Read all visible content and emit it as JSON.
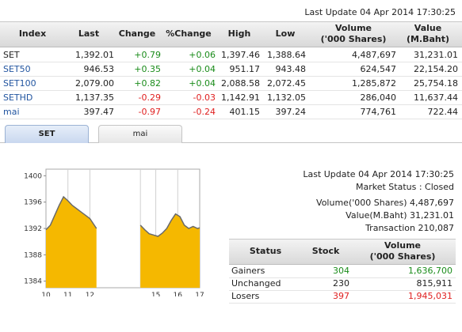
{
  "top": {
    "last_update": "Last Update 04 Apr 2014 17:30:25"
  },
  "index_table": {
    "headers": [
      "Index",
      "Last",
      "Change",
      "%Change",
      "High",
      "Low",
      "Volume\n('000 Shares)",
      "Value\n(M.Baht)"
    ],
    "rows": [
      {
        "index": "SET",
        "last": "1,392.01",
        "change": "+0.79",
        "pct": "+0.06",
        "high": "1,397.46",
        "low": "1,388.64",
        "volume": "4,487,697",
        "value": "31,231.01",
        "dir": "pos"
      },
      {
        "index": "SET50",
        "last": "946.53",
        "change": "+0.35",
        "pct": "+0.04",
        "high": "951.17",
        "low": "943.48",
        "volume": "624,547",
        "value": "22,154.20",
        "dir": "pos"
      },
      {
        "index": "SET100",
        "last": "2,079.00",
        "change": "+0.82",
        "pct": "+0.04",
        "high": "2,088.58",
        "low": "2,072.45",
        "volume": "1,285,872",
        "value": "25,754.18",
        "dir": "pos"
      },
      {
        "index": "SETHD",
        "last": "1,137.35",
        "change": "-0.29",
        "pct": "-0.03",
        "high": "1,142.91",
        "low": "1,132.05",
        "volume": "286,040",
        "value": "11,637.44",
        "dir": "neg"
      },
      {
        "index": "mai",
        "last": "397.47",
        "change": "-0.97",
        "pct": "-0.24",
        "high": "401.15",
        "low": "397.24",
        "volume": "774,761",
        "value": "722.44",
        "dir": "neg"
      }
    ]
  },
  "tabs": [
    {
      "label": "SET",
      "active": true
    },
    {
      "label": "mai",
      "active": false
    }
  ],
  "chart_data": {
    "type": "area",
    "x_tick_labels": [
      "10",
      "11",
      "12",
      "15",
      "16",
      "17"
    ],
    "y_tick_labels": [
      "1400",
      "1396",
      "1392",
      "1388",
      "1384"
    ],
    "ylim": [
      1383,
      1401
    ],
    "sessions": [
      {
        "t": [
          10.0,
          10.2,
          10.4,
          10.6,
          10.8,
          11.0,
          11.2,
          11.4,
          11.6,
          11.8,
          12.0,
          12.3
        ],
        "v": [
          1391.8,
          1392.5,
          1394.0,
          1395.5,
          1396.8,
          1396.2,
          1395.5,
          1395.0,
          1394.5,
          1394.0,
          1393.5,
          1392.0
        ]
      },
      {
        "t": [
          14.3,
          14.5,
          14.7,
          14.9,
          15.1,
          15.3,
          15.5,
          15.7,
          15.9,
          16.1,
          16.3,
          16.5,
          16.7,
          16.9,
          17.0
        ],
        "v": [
          1392.5,
          1391.8,
          1391.2,
          1391.0,
          1390.8,
          1391.3,
          1392.0,
          1393.2,
          1394.2,
          1393.8,
          1392.5,
          1392.0,
          1392.3,
          1392.0,
          1392.1
        ]
      }
    ]
  },
  "market_info": {
    "last_update": "Last Update 04 Apr 2014 17:30:25",
    "status": "Market Status : Closed",
    "volume": "Volume('000 Shares) 4,487,697",
    "value": "Value(M.Baht) 31,231.01",
    "transaction": "Transaction 210,087"
  },
  "status_table": {
    "headers": [
      "Status",
      "Stock",
      "Volume\n('000 Shares)"
    ],
    "rows": [
      {
        "status": "Gainers",
        "stock": "304",
        "volume": "1,636,700",
        "dir": "pos"
      },
      {
        "status": "Unchanged",
        "stock": "230",
        "volume": "815,911",
        "dir": "neutral"
      },
      {
        "status": "Losers",
        "stock": "397",
        "volume": "1,945,031",
        "dir": "neg"
      }
    ]
  },
  "colors": {
    "area_fill": "#f5b800",
    "line": "#6a6a6a",
    "positive": "#1a8c1a",
    "negative": "#e02020",
    "link": "#2255a0"
  }
}
